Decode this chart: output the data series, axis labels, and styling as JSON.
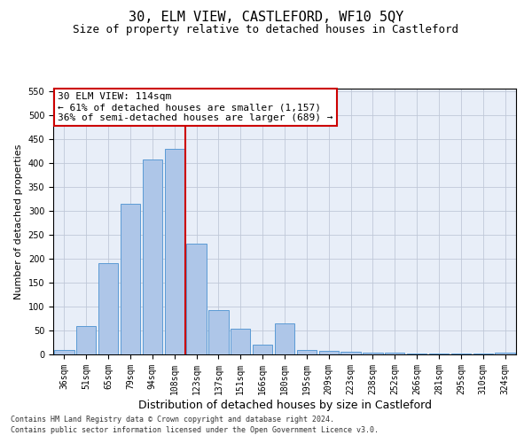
{
  "title": "30, ELM VIEW, CASTLEFORD, WF10 5QY",
  "subtitle": "Size of property relative to detached houses in Castleford",
  "xlabel": "Distribution of detached houses by size in Castleford",
  "ylabel": "Number of detached properties",
  "categories": [
    "36sqm",
    "51sqm",
    "65sqm",
    "79sqm",
    "94sqm",
    "108sqm",
    "123sqm",
    "137sqm",
    "151sqm",
    "166sqm",
    "180sqm",
    "195sqm",
    "209sqm",
    "223sqm",
    "238sqm",
    "252sqm",
    "266sqm",
    "281sqm",
    "295sqm",
    "310sqm",
    "324sqm"
  ],
  "values": [
    10,
    60,
    190,
    315,
    407,
    430,
    232,
    93,
    53,
    20,
    65,
    10,
    8,
    5,
    3,
    3,
    2,
    2,
    1,
    1,
    3
  ],
  "bar_color": "#aec6e8",
  "bar_edge_color": "#5b9bd5",
  "grid_color": "#c0c8d8",
  "bg_color": "#e8eef8",
  "vline_x_index": 5.5,
  "vline_color": "#cc0000",
  "annotation_text": "30 ELM VIEW: 114sqm\n← 61% of detached houses are smaller (1,157)\n36% of semi-detached houses are larger (689) →",
  "annotation_box_color": "#ffffff",
  "annotation_box_edge_color": "#cc0000",
  "ylim": [
    0,
    555
  ],
  "yticks": [
    0,
    50,
    100,
    150,
    200,
    250,
    300,
    350,
    400,
    450,
    500,
    550
  ],
  "footnote1": "Contains HM Land Registry data © Crown copyright and database right 2024.",
  "footnote2": "Contains public sector information licensed under the Open Government Licence v3.0.",
  "title_fontsize": 11,
  "subtitle_fontsize": 9,
  "ylabel_fontsize": 8,
  "xlabel_fontsize": 9,
  "tick_fontsize": 7,
  "annot_fontsize": 8,
  "footnote_fontsize": 6
}
